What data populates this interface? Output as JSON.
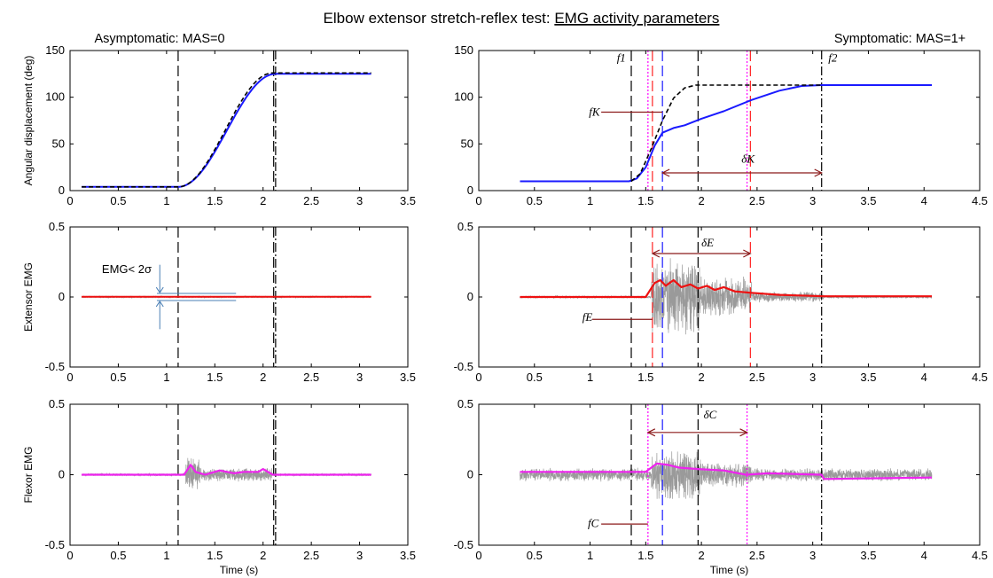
{
  "figure": {
    "title_prefix": "Elbow extensor stretch-reflex test: ",
    "title_underlined": "EMG activity parameters",
    "left_heading": "Asymptomatic: MAS=0",
    "right_heading": "Symptomatic: MAS=1+"
  },
  "chart_data": [
    {
      "id": "asym_angle",
      "type": "line",
      "ylabel": "Angular displacement (deg)",
      "xlabel": "",
      "xlim": [
        0,
        3.5
      ],
      "ylim": [
        0,
        150
      ],
      "xticks": [
        "0",
        "0.5",
        "1",
        "1.5",
        "2",
        "2.5",
        "3",
        "3.5"
      ],
      "yticks": [
        "0",
        "50",
        "100",
        "150"
      ],
      "vlines": [
        {
          "x": 1.12,
          "style": "dash",
          "color": "#000000"
        },
        {
          "x": 2.11,
          "style": "dash",
          "color": "#000000"
        },
        {
          "x": 2.13,
          "style": "dashdot",
          "color": "#000000"
        }
      ],
      "series": [
        {
          "kind": "ramp",
          "color": "#1a1aff",
          "width": 2,
          "x0": 0.12,
          "x1": 3.12,
          "y0": 4,
          "y1": 125,
          "t0": 1.12,
          "t1": 2.13
        },
        {
          "kind": "ramp",
          "color": "#000000",
          "width": 1.6,
          "dash": "5,3",
          "x0": 0.12,
          "x1": 3.12,
          "y0": 4,
          "y1": 126,
          "t0": 1.12,
          "t1": 2.1
        }
      ]
    },
    {
      "id": "sym_angle",
      "type": "line",
      "ylabel": "",
      "xlabel": "",
      "xlim": [
        0,
        4.5
      ],
      "ylim": [
        0,
        150
      ],
      "xticks": [
        "0",
        "0.5",
        "1",
        "1.5",
        "2",
        "2.5",
        "3",
        "3.5",
        "4",
        "4.5"
      ],
      "yticks": [
        "0",
        "50",
        "100",
        "150"
      ],
      "vlines": [
        {
          "x": 1.37,
          "style": "dash",
          "color": "#000000"
        },
        {
          "x": 1.52,
          "style": "dot",
          "color": "#ff00ff"
        },
        {
          "x": 1.56,
          "style": "dash",
          "color": "#ff2222"
        },
        {
          "x": 1.65,
          "style": "dash",
          "color": "#1a1aff"
        },
        {
          "x": 1.97,
          "style": "dash",
          "color": "#000000"
        },
        {
          "x": 2.41,
          "style": "dot",
          "color": "#ff00ff"
        },
        {
          "x": 2.44,
          "style": "dash",
          "color": "#ff2222"
        },
        {
          "x": 3.08,
          "style": "dashdot",
          "color": "#000000"
        }
      ],
      "series": [
        {
          "kind": "points",
          "color": "#1a1aff",
          "width": 2,
          "points": [
            [
              0.37,
              10
            ],
            [
              1.35,
              10
            ],
            [
              1.42,
              13
            ],
            [
              1.5,
              25
            ],
            [
              1.58,
              48
            ],
            [
              1.65,
              62
            ],
            [
              1.75,
              67
            ],
            [
              1.85,
              70
            ],
            [
              2.0,
              77
            ],
            [
              2.2,
              85
            ],
            [
              2.45,
              97
            ],
            [
              2.7,
              107
            ],
            [
              2.9,
              112
            ],
            [
              3.08,
              113
            ],
            [
              4.07,
              113
            ]
          ]
        },
        {
          "kind": "points",
          "color": "#000000",
          "width": 1.6,
          "dash": "5,3",
          "points": [
            [
              1.37,
              10
            ],
            [
              1.45,
              18
            ],
            [
              1.55,
              45
            ],
            [
              1.65,
              75
            ],
            [
              1.75,
              99
            ],
            [
              1.85,
              110
            ],
            [
              1.95,
              113
            ],
            [
              3.08,
              113
            ]
          ]
        }
      ],
      "annotations": [
        {
          "text": "f1",
          "x": 1.24,
          "y": 138,
          "style": "italic"
        },
        {
          "text": "f2",
          "x": 3.14,
          "y": 138,
          "style": "italic"
        },
        {
          "text": "fK",
          "x": 0.99,
          "y": 80,
          "style": "italic"
        },
        {
          "text": "δK",
          "x": 2.36,
          "y": 30,
          "style": "italic"
        }
      ],
      "arrows": [
        {
          "type": "pointer",
          "x0": 1.1,
          "x1": 1.65,
          "y": 84,
          "color": "#8b1a1a"
        },
        {
          "type": "double",
          "x0": 1.65,
          "x1": 3.08,
          "y": 19,
          "color": "#8b1a1a"
        }
      ]
    },
    {
      "id": "asym_ext",
      "type": "line",
      "ylabel": "Extensor EMG",
      "xlabel": "",
      "xlim": [
        0,
        3.5
      ],
      "ylim": [
        -0.5,
        0.5
      ],
      "xticks": [
        "0",
        "0.5",
        "1",
        "1.5",
        "2",
        "2.5",
        "3",
        "3.5"
      ],
      "yticks": [
        "-0.5",
        "0",
        "0.5"
      ],
      "vlines": [
        {
          "x": 1.12,
          "style": "dash",
          "color": "#000000"
        },
        {
          "x": 2.11,
          "style": "dash",
          "color": "#000000"
        },
        {
          "x": 2.13,
          "style": "dashdot",
          "color": "#000000"
        }
      ],
      "noise": {
        "x0": 0.12,
        "x1": 3.12,
        "base": 0.006,
        "bursts": [],
        "seed": 3
      },
      "envelope": {
        "color": "#ee1111",
        "width": 2,
        "points": [
          [
            0.12,
            0.002
          ],
          [
            3.12,
            0.002
          ]
        ]
      },
      "annotations": [
        {
          "text": "EMG< 2σ",
          "x": 0.33,
          "y": 0.17,
          "style": "sans"
        }
      ],
      "threshold": {
        "x0": 0.9,
        "x1": 1.72,
        "yhi": 0.025,
        "ylo": -0.025,
        "color": "#4a7fb5"
      }
    },
    {
      "id": "sym_ext",
      "type": "line",
      "ylabel": "",
      "xlabel": "",
      "xlim": [
        0,
        4.5
      ],
      "ylim": [
        -0.5,
        0.5
      ],
      "xticks": [
        "0",
        "0.5",
        "1",
        "1.5",
        "2",
        "2.5",
        "3",
        "3.5",
        "4",
        "4.5"
      ],
      "yticks": [
        "-0.5",
        "0",
        "0.5"
      ],
      "vlines": [
        {
          "x": 1.37,
          "style": "dash",
          "color": "#000000"
        },
        {
          "x": 1.56,
          "style": "dash",
          "color": "#ff2222"
        },
        {
          "x": 1.65,
          "style": "dash",
          "color": "#1a1aff"
        },
        {
          "x": 1.97,
          "style": "dash",
          "color": "#000000"
        },
        {
          "x": 2.44,
          "style": "dash",
          "color": "#ff2222"
        },
        {
          "x": 3.08,
          "style": "dashdot",
          "color": "#000000"
        }
      ],
      "noise": {
        "x0": 0.37,
        "x1": 4.07,
        "base": 0.01,
        "bursts": [
          {
            "x0": 1.55,
            "x1": 2.0,
            "amp": 0.3
          },
          {
            "x0": 2.0,
            "x1": 2.45,
            "amp": 0.15
          },
          {
            "x0": 2.45,
            "x1": 3.1,
            "amp": 0.04
          }
        ],
        "seed": 7
      },
      "envelope": {
        "color": "#ee1111",
        "width": 2.2,
        "points": [
          [
            0.37,
            0.0
          ],
          [
            1.5,
            0.0
          ],
          [
            1.58,
            0.1
          ],
          [
            1.63,
            0.12
          ],
          [
            1.68,
            0.08
          ],
          [
            1.75,
            0.12
          ],
          [
            1.82,
            0.07
          ],
          [
            1.9,
            0.09
          ],
          [
            1.97,
            0.06
          ],
          [
            2.05,
            0.08
          ],
          [
            2.12,
            0.05
          ],
          [
            2.2,
            0.07
          ],
          [
            2.3,
            0.04
          ],
          [
            2.45,
            0.03
          ],
          [
            2.7,
            0.015
          ],
          [
            3.1,
            0.005
          ],
          [
            4.07,
            0.005
          ]
        ]
      },
      "annotations": [
        {
          "text": "fE",
          "x": 0.93,
          "y": -0.17,
          "style": "italic"
        },
        {
          "text": "δE",
          "x": 2.0,
          "y": 0.36,
          "style": "italic"
        }
      ],
      "arrows": [
        {
          "type": "pointer",
          "x0": 1.02,
          "x1": 1.56,
          "y": -0.16,
          "color": "#8b1a1a"
        },
        {
          "type": "double",
          "x0": 1.56,
          "x1": 2.44,
          "y": 0.31,
          "color": "#8b1a1a"
        }
      ]
    },
    {
      "id": "asym_flex",
      "type": "line",
      "ylabel": "Flexor EMG",
      "xlabel": "Time (s)",
      "xlim": [
        0,
        3.5
      ],
      "ylim": [
        -0.5,
        0.5
      ],
      "xticks": [
        "0",
        "0.5",
        "1",
        "1.5",
        "2",
        "2.5",
        "3",
        "3.5"
      ],
      "yticks": [
        "-0.5",
        "0",
        "0.5"
      ],
      "vlines": [
        {
          "x": 1.12,
          "style": "dash",
          "color": "#000000"
        },
        {
          "x": 2.11,
          "style": "dash",
          "color": "#000000"
        },
        {
          "x": 2.13,
          "style": "dashdot",
          "color": "#000000"
        }
      ],
      "noise": {
        "x0": 0.12,
        "x1": 3.12,
        "base": 0.01,
        "bursts": [
          {
            "x0": 1.2,
            "x1": 1.35,
            "amp": 0.14
          },
          {
            "x0": 1.35,
            "x1": 2.1,
            "amp": 0.05
          }
        ],
        "seed": 11
      },
      "envelope": {
        "color": "#ee22ee",
        "width": 2.2,
        "points": [
          [
            0.12,
            0.0
          ],
          [
            1.18,
            0.0
          ],
          [
            1.25,
            0.07
          ],
          [
            1.3,
            0.02
          ],
          [
            1.4,
            0.0
          ],
          [
            1.55,
            0.03
          ],
          [
            1.7,
            0.01
          ],
          [
            1.8,
            0.02
          ],
          [
            1.95,
            0.02
          ],
          [
            2.0,
            0.04
          ],
          [
            2.1,
            0.0
          ],
          [
            3.12,
            0.0
          ]
        ]
      }
    },
    {
      "id": "sym_flex",
      "type": "line",
      "ylabel": "",
      "xlabel": "Time (s)",
      "xlim": [
        0,
        4.5
      ],
      "ylim": [
        -0.5,
        0.5
      ],
      "xticks": [
        "0",
        "0.5",
        "1",
        "1.5",
        "2",
        "2.5",
        "3",
        "3.5",
        "4",
        "4.5"
      ],
      "yticks": [
        "-0.5",
        "0",
        "0.5"
      ],
      "vlines": [
        {
          "x": 1.37,
          "style": "dash",
          "color": "#000000"
        },
        {
          "x": 1.52,
          "style": "dot",
          "color": "#ff00ff"
        },
        {
          "x": 1.65,
          "style": "dash",
          "color": "#1a1aff"
        },
        {
          "x": 1.97,
          "style": "dash",
          "color": "#000000"
        },
        {
          "x": 2.41,
          "style": "dot",
          "color": "#ff00ff"
        },
        {
          "x": 3.08,
          "style": "dashdot",
          "color": "#000000"
        }
      ],
      "noise": {
        "x0": 0.37,
        "x1": 4.07,
        "base": 0.05,
        "bursts": [
          {
            "x0": 1.55,
            "x1": 2.0,
            "amp": 0.2
          },
          {
            "x0": 2.0,
            "x1": 2.45,
            "amp": 0.1
          },
          {
            "x0": 3.08,
            "x1": 4.07,
            "amp": 0.025
          }
        ],
        "seed": 19
      },
      "envelope": {
        "color": "#ee22ee",
        "width": 2.2,
        "points": [
          [
            0.37,
            0.02
          ],
          [
            1.5,
            0.02
          ],
          [
            1.6,
            0.08
          ],
          [
            1.7,
            0.07
          ],
          [
            1.8,
            0.05
          ],
          [
            1.97,
            0.04
          ],
          [
            2.2,
            0.03
          ],
          [
            2.4,
            0.0
          ],
          [
            2.6,
            0.01
          ],
          [
            3.08,
            0.0
          ],
          [
            3.1,
            -0.03
          ],
          [
            4.07,
            -0.02
          ]
        ]
      },
      "annotations": [
        {
          "text": "fC",
          "x": 0.98,
          "y": -0.37,
          "style": "italic"
        },
        {
          "text": "δC",
          "x": 2.02,
          "y": 0.4,
          "style": "italic"
        }
      ],
      "arrows": [
        {
          "type": "pointer",
          "x0": 1.1,
          "x1": 1.52,
          "y": -0.35,
          "color": "#8b1a1a"
        },
        {
          "type": "double",
          "x0": 1.52,
          "x1": 2.41,
          "y": 0.3,
          "color": "#8b1a1a"
        }
      ]
    }
  ]
}
